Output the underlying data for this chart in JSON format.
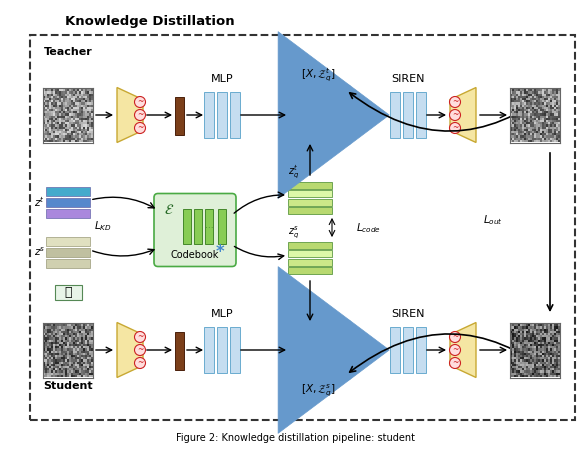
{
  "title": "Knowledge Distillation",
  "bg_color": "#ffffff",
  "light_blue_fc": "#c5ddf0",
  "light_blue_ec": "#6aabcf",
  "yellow_trap_fc": "#f5e6a3",
  "yellow_trap_ec": "#c8a832",
  "codebook_bg": "#dff0d8",
  "codebook_ec": "#4aaa44",
  "green_bar_fc": "#88cc55",
  "green_bar_ec": "#44882a",
  "red_circle_fc": "#ffdddd",
  "red_circle_ec": "#cc2222",
  "brown_bar_fc": "#7b3f1a",
  "brown_bar_ec": "#4a200a",
  "zq_bar_colors": [
    "#b8d970",
    "#cce888",
    "#ddf8a8"
  ],
  "zt_bar_colors": [
    "#88aacc",
    "#5588bb",
    "#99bbdd"
  ],
  "zt_bar_colors2": [
    "#aa88cc",
    "#7755aa",
    "#cc99ee"
  ],
  "zs_bar_colors": [
    "#ccccaa",
    "#bbbb88",
    "#ddddbb"
  ],
  "caption": "Figure 2: Knowledge distillation pipeline: student",
  "teacher_label": "Teacher",
  "student_label": "Student",
  "mlp_label": "MLP",
  "siren_label": "SIREN",
  "codebook_label": "Codebook",
  "lkd_label": "$L_{KD}$",
  "lcode_label": "$L_{code}$",
  "lout_label": "$L_{out}$"
}
